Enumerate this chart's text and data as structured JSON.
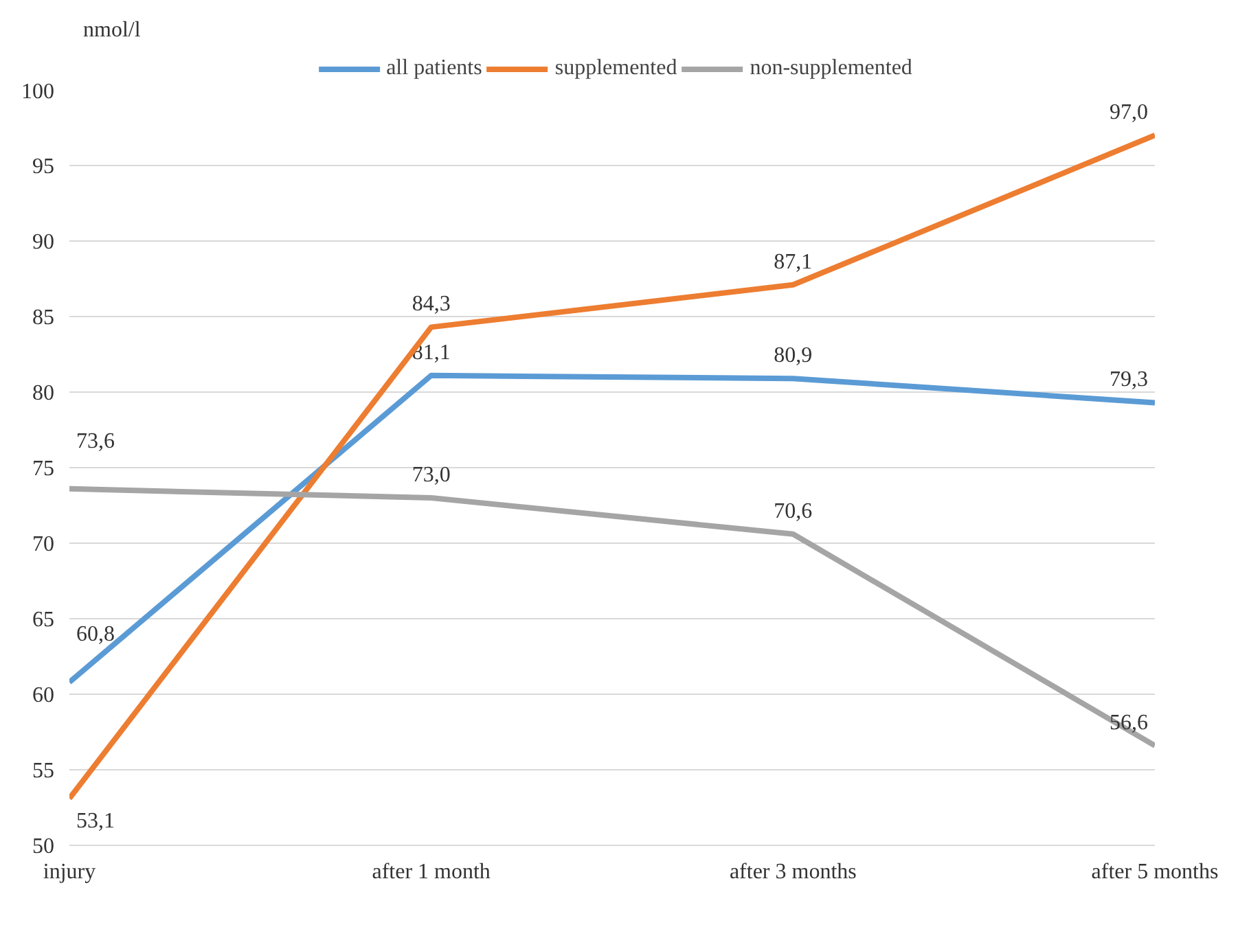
{
  "chart_data": {
    "type": "line",
    "ylabel": "nmol/l",
    "categories": [
      "injury",
      "after 1 month",
      "after 3 months",
      "after 5 months"
    ],
    "series": [
      {
        "name": "all patients",
        "color": "#5b9bd5",
        "values": [
          60.8,
          81.1,
          80.9,
          79.3
        ],
        "value_labels": [
          "60,8",
          "81,1",
          "80,9",
          "79,3"
        ]
      },
      {
        "name": "supplemented",
        "color": "#ed7d31",
        "values": [
          53.1,
          84.3,
          87.1,
          97.0
        ],
        "value_labels": [
          "53,1",
          "84,3",
          "87,1",
          "97,0"
        ]
      },
      {
        "name": "non-supplemented",
        "color": "#a5a5a5",
        "values": [
          73.6,
          73.0,
          70.6,
          56.6
        ],
        "value_labels": [
          "73,6",
          "73,0",
          "70,6",
          "56,6"
        ]
      }
    ],
    "ylim": [
      50,
      100
    ],
    "yticks": [
      50,
      55,
      60,
      65,
      70,
      75,
      80,
      85,
      90,
      95,
      100
    ],
    "grid": "y",
    "legend": "top",
    "marker": "none",
    "line_style": "solid"
  }
}
